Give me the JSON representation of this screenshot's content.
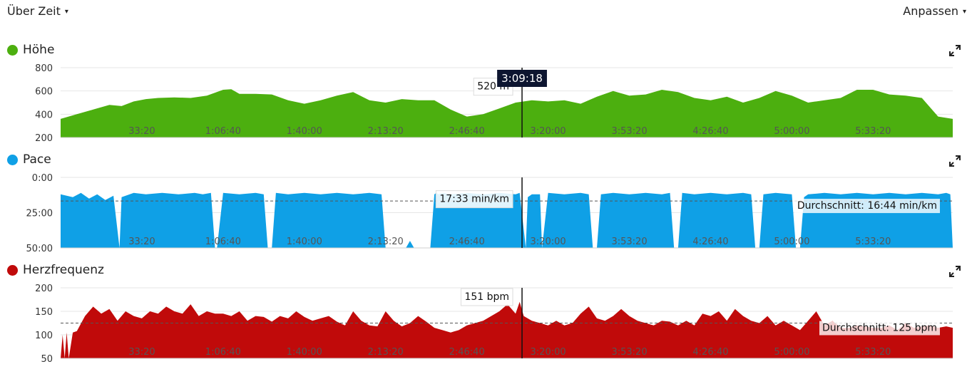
{
  "topbar": {
    "left_dropdown": "Über Zeit",
    "right_dropdown": "Anpassen",
    "caret": "▾"
  },
  "cursor": {
    "time": "3:09:18",
    "x_seconds": 11358
  },
  "colors": {
    "hoehe": "#4caf0f",
    "pace": "#0fa0e6",
    "herz": "#c00a0a"
  },
  "icons": {
    "expand": "expand-icon"
  },
  "chart_data": [
    {
      "type": "area",
      "name": "Höhe",
      "title": "Höhe",
      "xlim": [
        0,
        21960
      ],
      "ylim": [
        200,
        800
      ],
      "yticks": [
        "800",
        "600",
        "400",
        "200"
      ],
      "ytick_values": [
        800,
        600,
        400,
        200
      ],
      "xticks": [
        "33:20",
        "1:06:40",
        "1:40:00",
        "2:13:20",
        "2:46:40",
        "3:20:00",
        "3:53:20",
        "4:26:40",
        "5:00:00",
        "5:33:20"
      ],
      "xtick_values": [
        2000,
        4000,
        6000,
        8000,
        10000,
        12000,
        14000,
        16000,
        18000,
        20000
      ],
      "cursor_label": "520 m",
      "x": [
        0,
        400,
        800,
        1200,
        1500,
        1800,
        2100,
        2400,
        2800,
        3200,
        3600,
        4000,
        4200,
        4400,
        4800,
        5200,
        5600,
        6000,
        6400,
        6800,
        7200,
        7600,
        8000,
        8400,
        8800,
        9200,
        9600,
        10000,
        10400,
        10800,
        11200,
        11600,
        12000,
        12400,
        12800,
        13200,
        13600,
        14000,
        14400,
        14800,
        15200,
        15600,
        16000,
        16400,
        16800,
        17200,
        17600,
        18000,
        18400,
        18800,
        19200,
        19600,
        20000,
        20400,
        20800,
        21200,
        21600,
        21960
      ],
      "y": [
        360,
        400,
        440,
        480,
        470,
        510,
        530,
        540,
        545,
        540,
        560,
        610,
        615,
        575,
        575,
        570,
        520,
        490,
        520,
        560,
        590,
        520,
        500,
        530,
        520,
        520,
        440,
        380,
        400,
        450,
        500,
        520,
        510,
        520,
        490,
        550,
        600,
        560,
        570,
        610,
        590,
        540,
        520,
        550,
        500,
        540,
        600,
        560,
        500,
        520,
        540,
        610,
        610,
        570,
        560,
        540,
        380,
        360
      ]
    },
    {
      "type": "area",
      "name": "Pace",
      "title": "Pace",
      "xlim": [
        0,
        21960
      ],
      "ylim": [
        0,
        50
      ],
      "y_inverted": true,
      "yticks": [
        "0:00",
        "25:00",
        "50:00"
      ],
      "ytick_values": [
        0,
        25,
        50
      ],
      "xticks": [
        "33:20",
        "1:06:40",
        "1:40:00",
        "2:13:20",
        "2:46:40",
        "3:20:00",
        "3:53:20",
        "4:26:40",
        "5:00:00",
        "5:33:20"
      ],
      "xtick_values": [
        2000,
        4000,
        6000,
        8000,
        10000,
        12000,
        14000,
        16000,
        18000,
        20000
      ],
      "cursor_label": "17:33 min/km",
      "average_label": "Durchschnitt: 16:44 min/km",
      "average_value": 16.7,
      "x": [
        0,
        300,
        500,
        700,
        900,
        1100,
        1300,
        1450,
        1500,
        1800,
        2100,
        2500,
        2900,
        3300,
        3500,
        3700,
        3800,
        3850,
        4000,
        4400,
        4800,
        5000,
        5100,
        5200,
        5300,
        5600,
        6000,
        6400,
        6800,
        7200,
        7600,
        7900,
        8000,
        8100,
        8300,
        8500,
        8600,
        8700,
        8800,
        9100,
        9200,
        9250,
        9300,
        9400,
        9600,
        10000,
        10400,
        10800,
        11200,
        11300,
        11450,
        11500,
        11600,
        11800,
        11850,
        12000,
        12400,
        12800,
        13000,
        13100,
        13200,
        13300,
        13600,
        14000,
        14400,
        14800,
        15000,
        15100,
        15200,
        15300,
        15600,
        16000,
        16400,
        16800,
        17000,
        17100,
        17200,
        17300,
        17600,
        18000,
        18100,
        18150,
        18200,
        18300,
        18400,
        18800,
        19200,
        19600,
        20000,
        20400,
        20800,
        21200,
        21600,
        21800,
        21900,
        21960
      ],
      "y": [
        12,
        14,
        11,
        15,
        12,
        16,
        13,
        50,
        14,
        11,
        12,
        11,
        12,
        11,
        12,
        11,
        50,
        50,
        11,
        12,
        11,
        12,
        50,
        50,
        11,
        12,
        11,
        12,
        11,
        12,
        11,
        12,
        50,
        50,
        50,
        50,
        45,
        50,
        50,
        50,
        12,
        11,
        12,
        11,
        12,
        11,
        12,
        11,
        12,
        11,
        50,
        14,
        12,
        12,
        50,
        11,
        12,
        11,
        12,
        50,
        50,
        12,
        11,
        12,
        11,
        12,
        11,
        50,
        50,
        11,
        12,
        11,
        12,
        11,
        12,
        50,
        50,
        12,
        11,
        12,
        50,
        50,
        50,
        14,
        12,
        11,
        12,
        11,
        12,
        11,
        12,
        11,
        12,
        11,
        12,
        50
      ]
    },
    {
      "type": "area",
      "name": "Herzfrequenz",
      "title": "Herzfrequenz",
      "xlim": [
        0,
        21960
      ],
      "ylim": [
        50,
        200
      ],
      "yticks": [
        "200",
        "150",
        "100",
        "50"
      ],
      "ytick_values": [
        200,
        150,
        100,
        50
      ],
      "xticks": [
        "33:20",
        "1:06:40",
        "1:40:00",
        "2:13:20",
        "2:46:40",
        "3:20:00",
        "3:53:20",
        "4:26:40",
        "5:00:00",
        "5:33:20"
      ],
      "xtick_values": [
        2000,
        4000,
        6000,
        8000,
        10000,
        12000,
        14000,
        16000,
        18000,
        20000
      ],
      "cursor_label": "151 bpm",
      "average_label": "Durchschnitt: 125 bpm",
      "average_value": 125,
      "x": [
        0,
        50,
        100,
        150,
        200,
        300,
        400,
        600,
        800,
        1000,
        1200,
        1400,
        1600,
        1800,
        2000,
        2200,
        2400,
        2600,
        2800,
        3000,
        3200,
        3400,
        3600,
        3800,
        4000,
        4200,
        4400,
        4600,
        4800,
        5000,
        5200,
        5400,
        5600,
        5800,
        6000,
        6200,
        6400,
        6600,
        6800,
        7000,
        7200,
        7400,
        7600,
        7800,
        8000,
        8200,
        8400,
        8600,
        8800,
        9000,
        9200,
        9400,
        9600,
        9800,
        10000,
        10400,
        10800,
        11000,
        11200,
        11300,
        11400,
        11600,
        11800,
        12000,
        12200,
        12400,
        12600,
        12800,
        13000,
        13200,
        13400,
        13600,
        13800,
        14000,
        14200,
        14400,
        14600,
        14800,
        15000,
        15200,
        15400,
        15600,
        15800,
        16000,
        16200,
        16400,
        16600,
        16800,
        17000,
        17200,
        17400,
        17600,
        17800,
        18000,
        18200,
        18400,
        18600,
        18800,
        19000,
        19200,
        19400,
        19600,
        19800,
        20000,
        20200,
        20400,
        20600,
        20800,
        21000,
        21200,
        21400,
        21600,
        21800,
        21960
      ],
      "y": [
        50,
        100,
        50,
        105,
        50,
        105,
        108,
        140,
        160,
        145,
        155,
        130,
        150,
        140,
        135,
        150,
        145,
        160,
        150,
        145,
        165,
        140,
        150,
        145,
        145,
        140,
        150,
        130,
        140,
        138,
        128,
        140,
        135,
        150,
        138,
        130,
        135,
        140,
        128,
        120,
        150,
        130,
        120,
        118,
        150,
        130,
        118,
        125,
        140,
        128,
        115,
        110,
        105,
        110,
        120,
        130,
        150,
        165,
        145,
        170,
        140,
        130,
        125,
        120,
        130,
        120,
        125,
        145,
        160,
        135,
        130,
        140,
        155,
        140,
        130,
        125,
        120,
        130,
        128,
        120,
        130,
        120,
        145,
        140,
        150,
        130,
        155,
        140,
        130,
        125,
        140,
        120,
        130,
        120,
        110,
        130,
        150,
        120,
        130,
        115,
        115,
        120,
        118,
        115,
        115,
        120,
        110,
        125,
        115,
        118,
        120,
        115,
        118,
        115
      ]
    }
  ]
}
